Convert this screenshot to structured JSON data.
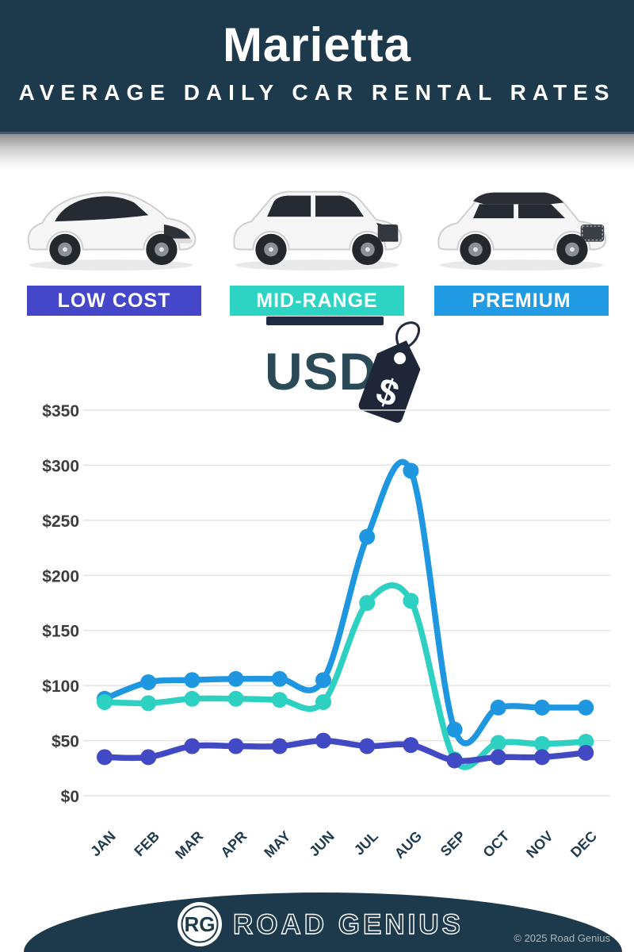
{
  "header": {
    "city": "Marietta",
    "subtitle": "AVERAGE DAILY CAR RENTAL RATES"
  },
  "categories": [
    {
      "label": "LOW COST",
      "color": "#4447c9",
      "car_icon": "hatchback-car-icon"
    },
    {
      "label": "MID-RANGE",
      "color": "#2dd4c4",
      "car_icon": "midsize-suv-car-icon"
    },
    {
      "label": "PREMIUM",
      "color": "#219be4",
      "car_icon": "premium-suv-car-icon"
    }
  ],
  "currency": {
    "label": "USD",
    "dollar_symbol": "$",
    "tag_icon": "price-tag-icon",
    "tag_color": "#1e2638"
  },
  "chart_data": {
    "type": "line",
    "categories": [
      "JAN",
      "FEB",
      "MAR",
      "APR",
      "MAY",
      "JUN",
      "JUL",
      "AUG",
      "SEP",
      "OCT",
      "NOV",
      "DEC"
    ],
    "series": [
      {
        "name": "PREMIUM",
        "color": "#1e97e0",
        "values": [
          88,
          103,
          105,
          106,
          106,
          105,
          235,
          295,
          60,
          80,
          80,
          80
        ]
      },
      {
        "name": "MID-RANGE",
        "color": "#2ed0c1",
        "values": [
          85,
          84,
          88,
          88,
          87,
          85,
          175,
          177,
          33,
          48,
          47,
          49
        ]
      },
      {
        "name": "LOW COST",
        "color": "#4149c4",
        "values": [
          35,
          35,
          45,
          45,
          45,
          50,
          45,
          46,
          32,
          35,
          35,
          39
        ]
      }
    ],
    "yticks": [
      0,
      50,
      100,
      150,
      200,
      250,
      300,
      350
    ],
    "ytick_prefix": "$",
    "ylim": [
      0,
      350
    ],
    "grid": true,
    "legend": false,
    "xlabel": "",
    "ylabel": ""
  },
  "footer": {
    "logo_initials": "RG",
    "brand": "ROAD GENIUS",
    "copyright": "© 2025 Road Genius"
  }
}
